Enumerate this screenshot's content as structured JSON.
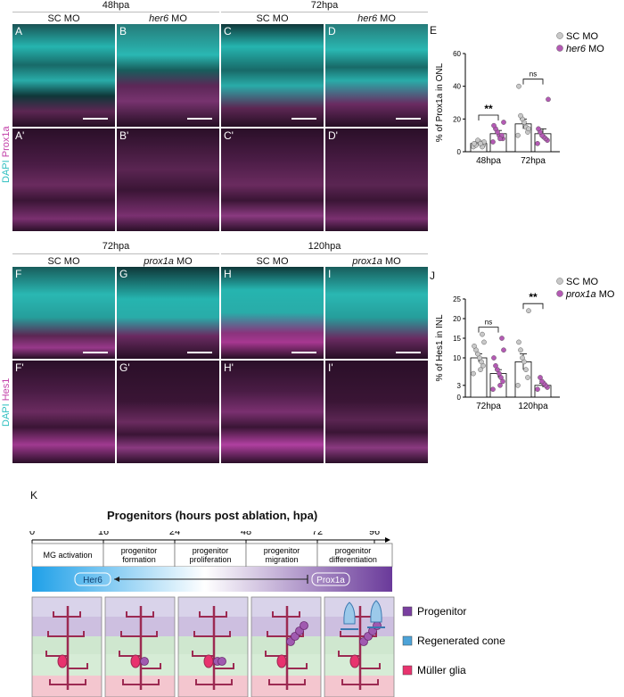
{
  "top": {
    "group_48": "48hpa",
    "group_72": "72hpa",
    "col_A": "SC MO",
    "col_B_italic": "her6",
    "col_B_rest": " MO",
    "col_C": "SC MO",
    "col_D_italic": "her6",
    "col_D_rest": " MO",
    "panels_top": [
      "A",
      "B",
      "C",
      "D"
    ],
    "panels_bottom": [
      "A'",
      "B'",
      "C'",
      "D'"
    ],
    "stain_dapi": "DAPI",
    "stain_marker": " Prox1a"
  },
  "bottom": {
    "group_72": "72hpa",
    "group_120": "120hpa",
    "col_F": "SC MO",
    "col_G_italic": "prox1a",
    "col_G_rest": " MO",
    "col_H": "SC MO",
    "col_I_italic": "prox1a",
    "col_I_rest": " MO",
    "panels_top": [
      "F",
      "G",
      "H",
      "I"
    ],
    "panels_bottom": [
      "F'",
      "G'",
      "H'",
      "I'"
    ],
    "stain_dapi": "DAPI",
    "stain_marker": " Hes1"
  },
  "colors": {
    "cyan": "#2fd6d0",
    "magenta": "#c23fa8",
    "sc_fill": "#c8c8c8",
    "mo_fill": "#b45ab4"
  },
  "chart_data": [
    {
      "panel": "E",
      "type": "bar",
      "ylabel": "% of Prox1a in ONL",
      "categories": [
        "48hpa",
        "72hpa"
      ],
      "ylim": [
        0,
        60
      ],
      "yticks": [
        0,
        20,
        40,
        60
      ],
      "legend": [
        {
          "name": "SC MO",
          "italic": false
        },
        {
          "name": "her6",
          "italic": true,
          "suffix": " MO"
        }
      ],
      "series": [
        {
          "name": "SC MO",
          "values": [
            5,
            17
          ],
          "errors": [
            1,
            3
          ],
          "points": [
            [
              3,
              4,
              5,
              6,
              7,
              4,
              5,
              6,
              3,
              5
            ],
            [
              10,
              12,
              15,
              18,
              20,
              22,
              40,
              14
            ]
          ]
        },
        {
          "name": "her6 MO",
          "values": [
            11,
            11
          ],
          "errors": [
            2,
            3
          ],
          "points": [
            [
              6,
              8,
              9,
              10,
              12,
              14,
              16,
              18,
              10,
              8
            ],
            [
              5,
              7,
              8,
              9,
              10,
              12,
              14,
              32
            ]
          ]
        }
      ],
      "significance": [
        "**",
        "ns"
      ]
    },
    {
      "panel": "J",
      "type": "bar",
      "ylabel": "% of Hes1 in INL",
      "categories": [
        "72hpa",
        "120hpa"
      ],
      "ylim": [
        0,
        25
      ],
      "yticks": [
        0,
        3,
        10,
        15,
        20,
        25
      ],
      "legend": [
        {
          "name": "SC MO",
          "italic": false
        },
        {
          "name": "prox1a",
          "italic": true,
          "suffix": " MO"
        }
      ],
      "series": [
        {
          "name": "SC MO",
          "values": [
            10,
            9
          ],
          "errors": [
            1,
            2
          ],
          "points": [
            [
              6,
              8,
              9,
              10,
              11,
              12,
              13,
              14,
              16,
              7
            ],
            [
              3,
              5,
              7,
              9,
              10,
              12,
              14,
              22
            ]
          ]
        },
        {
          "name": "prox1a MO",
          "values": [
            6,
            3
          ],
          "errors": [
            1,
            0.5
          ],
          "points": [
            [
              2,
              4,
              5,
              6,
              7,
              8,
              10,
              12,
              15,
              3
            ],
            [
              2,
              2.5,
              3,
              3.5,
              4,
              5
            ]
          ]
        }
      ],
      "significance": [
        "ns",
        "**"
      ]
    }
  ],
  "schematic": {
    "label_K": "K",
    "title": "Progenitors (hours post ablation, hpa)",
    "ticks": [
      "0",
      "16",
      "24",
      "48",
      "72",
      "96"
    ],
    "stages": [
      {
        "line1": "MG activation",
        "line2": ""
      },
      {
        "line1": "progenitor",
        "line2": "formation"
      },
      {
        "line1": "progenitor",
        "line2": "proliferation"
      },
      {
        "line1": "progenitor",
        "line2": "migration"
      },
      {
        "line1": "progenitor",
        "line2": "differentiation"
      }
    ],
    "gene_left": "Her6",
    "gene_right": "Prox1a",
    "legend": [
      {
        "label": "Progenitor",
        "color": "#7a3fa0"
      },
      {
        "label": "Regenerated cone",
        "color": "#4da3d8"
      },
      {
        "label": "Müller glia",
        "color": "#e8336e"
      }
    ]
  },
  "letters": {
    "E": "E",
    "J": "J"
  }
}
